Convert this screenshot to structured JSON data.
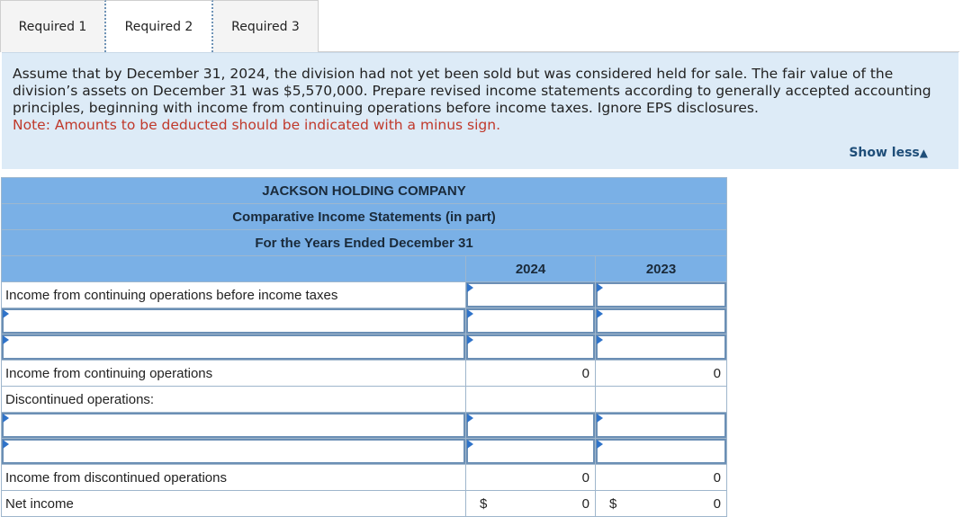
{
  "tabs": [
    {
      "label": "Required 1"
    },
    {
      "label": "Required 2"
    },
    {
      "label": "Required 3"
    }
  ],
  "instructions": {
    "text": "Assume that by December 31, 2024, the division had not yet been sold but was considered held for sale. The fair value of the division’s assets on December 31 was $5,570,000. Prepare revised income statements according to generally accepted accounting principles, beginning with income from continuing operations before income taxes. Ignore EPS disclosures.",
    "note": "Note: Amounts to be deducted should be indicated with a minus sign.",
    "show_less": "Show less"
  },
  "statement": {
    "company": "JACKSON HOLDING COMPANY",
    "title": "Comparative Income Statements (in part)",
    "period": "For the Years Ended December 31",
    "col_2024": "2024",
    "col_2023": "2023",
    "rows": {
      "income_before_taxes": {
        "label": "Income from continuing operations before income taxes",
        "v2024": "",
        "v2023": ""
      },
      "income_continuing": {
        "label": "Income from continuing operations",
        "v2024": "0",
        "v2023": "0"
      },
      "discontinued_header": {
        "label": "Discontinued operations:"
      },
      "income_discontinued": {
        "label": "Income from discontinued operations",
        "v2024": "0",
        "v2023": "0"
      },
      "net_income": {
        "label": "Net income",
        "dollar": "$",
        "v2024": "0",
        "v2023": "0"
      }
    }
  }
}
